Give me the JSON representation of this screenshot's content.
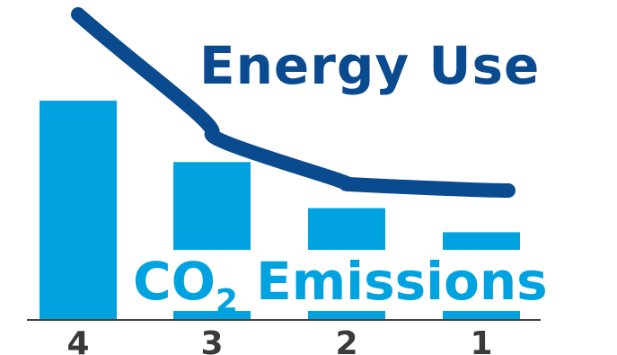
{
  "chart_data": {
    "type": "bar",
    "categories": [
      "4",
      "3",
      "2",
      "1"
    ],
    "series": [
      {
        "name": "CO2 Emissions",
        "values": [
          100,
          72,
          51,
          40
        ]
      },
      {
        "name": "Energy Use",
        "type": "line",
        "values": [
          140,
          85,
          62,
          59
        ]
      }
    ],
    "labels": {
      "energy": "Energy Use",
      "co2_main": "CO",
      "co2_sub": "2",
      "co2_rest": " Emissions"
    },
    "colors": {
      "bars": "#00a3e0",
      "line": "#0a4a8f",
      "axis": "#444444",
      "ticks": "#3a3a3a"
    }
  }
}
